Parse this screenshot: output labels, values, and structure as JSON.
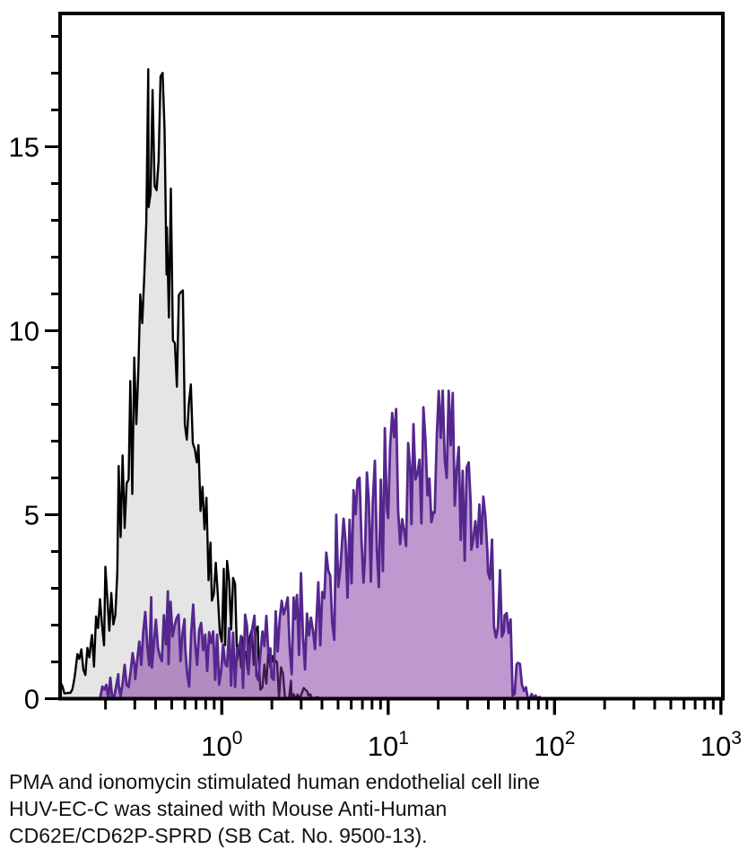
{
  "caption": {
    "lines": [
      "PMA and ionomycin stimulated human endothelial cell line",
      "HUV-EC-C was stained with Mouse Anti-Human",
      "CD62E/CD62P-SPRD (SB Cat. No. 9500-13)."
    ]
  },
  "colors": {
    "background": "#ffffff",
    "axis": "#000000",
    "control_stroke": "#000000",
    "control_fill": "#e5e5e5",
    "stained_stroke": "#55278e",
    "stained_fill": "#7d32a0",
    "text": "#111111"
  },
  "chart_data": {
    "type": "area",
    "subtype": "flow-cytometry-overlay-histogram",
    "title": "",
    "xlabel": "",
    "ylabel": "",
    "grid": false,
    "legend": null,
    "x_axis": {
      "scale": "log10",
      "min_log": -0.97,
      "max_log": 3.013,
      "major_ticks": [
        {
          "value": 1,
          "base": "10",
          "exp": "0"
        },
        {
          "value": 10,
          "base": "10",
          "exp": "1"
        },
        {
          "value": 100,
          "base": "10",
          "exp": "2"
        },
        {
          "value": 1000,
          "base": "10",
          "exp": "3"
        }
      ],
      "minor_ticks_per_decade": [
        2,
        3,
        4,
        5,
        6,
        7,
        8,
        9
      ]
    },
    "y_axis": {
      "min": 0,
      "max": 18.6,
      "clamp": 18.3,
      "major_ticks": [
        {
          "value": 0,
          "label": "0"
        },
        {
          "value": 5,
          "label": "5"
        },
        {
          "value": 10,
          "label": "10"
        },
        {
          "value": 15,
          "label": "15"
        }
      ],
      "minor_tick_interval": 1,
      "minor_tick_max": 18
    },
    "sample_step_log": 0.012,
    "series": [
      {
        "name": "unstained-control",
        "description": "gray filled histogram, black outline, peak near x=0.4 at ~17.8",
        "stroke": "#000000",
        "fill": "#e5e5e5",
        "fill_opacity": 1,
        "stroke_width": 2.4,
        "seed": 13,
        "peak": {
          "x": 0.4,
          "y": 17.8
        },
        "envelope": [
          [
            -0.97,
            0.4,
            0.35
          ],
          [
            -0.88,
            0.7,
            0.5
          ],
          [
            -0.78,
            1.5,
            1.0
          ],
          [
            -0.7,
            2.8,
            1.6
          ],
          [
            -0.62,
            4.5,
            2.2
          ],
          [
            -0.55,
            7.5,
            2.8
          ],
          [
            -0.49,
            11.5,
            3.0
          ],
          [
            -0.44,
            15.2,
            2.4
          ],
          [
            -0.38,
            15.6,
            2.1
          ],
          [
            -0.33,
            13.5,
            2.8
          ],
          [
            -0.27,
            10.5,
            2.8
          ],
          [
            -0.21,
            7.5,
            2.4
          ],
          [
            -0.14,
            5.2,
            2.0
          ],
          [
            -0.06,
            3.6,
            1.6
          ],
          [
            0.02,
            2.6,
            1.5
          ],
          [
            0.12,
            1.7,
            1.2
          ],
          [
            0.22,
            1.1,
            0.9
          ],
          [
            0.32,
            0.6,
            0.6
          ],
          [
            0.42,
            0.25,
            0.35
          ],
          [
            0.52,
            0.06,
            0.12
          ],
          [
            0.6,
            0.0,
            0.0
          ]
        ]
      },
      {
        "name": "cd62e-cd62p-sprd-stained",
        "description": "purple translucent histogram, dark purple outline, peak near x=22 at ~9",
        "stroke": "#55278e",
        "fill": "#7d32a0",
        "fill_opacity": 0.5,
        "stroke_width": 2.8,
        "seed": 99,
        "peak": {
          "x": 22,
          "y": 9.0
        },
        "envelope": [
          [
            -0.73,
            0.15,
            0.2
          ],
          [
            -0.62,
            0.5,
            0.5
          ],
          [
            -0.52,
            0.9,
            0.8
          ],
          [
            -0.42,
            1.6,
            1.3
          ],
          [
            -0.32,
            1.8,
            1.4
          ],
          [
            -0.22,
            1.5,
            1.2
          ],
          [
            -0.1,
            1.3,
            1.1
          ],
          [
            0.02,
            1.2,
            1.0
          ],
          [
            0.16,
            1.3,
            1.0
          ],
          [
            0.3,
            1.5,
            1.1
          ],
          [
            0.44,
            1.9,
            1.3
          ],
          [
            0.58,
            2.5,
            1.6
          ],
          [
            0.72,
            3.4,
            1.9
          ],
          [
            0.86,
            4.4,
            2.1
          ],
          [
            1.0,
            5.4,
            2.2
          ],
          [
            1.14,
            6.3,
            2.3
          ],
          [
            1.28,
            6.9,
            2.1
          ],
          [
            1.4,
            6.6,
            2.3
          ],
          [
            1.5,
            5.2,
            2.2
          ],
          [
            1.6,
            3.4,
            1.9
          ],
          [
            1.7,
            1.6,
            1.3
          ],
          [
            1.78,
            0.6,
            0.7
          ],
          [
            1.85,
            0.15,
            0.3
          ],
          [
            1.92,
            0.0,
            0.0
          ]
        ]
      }
    ]
  }
}
